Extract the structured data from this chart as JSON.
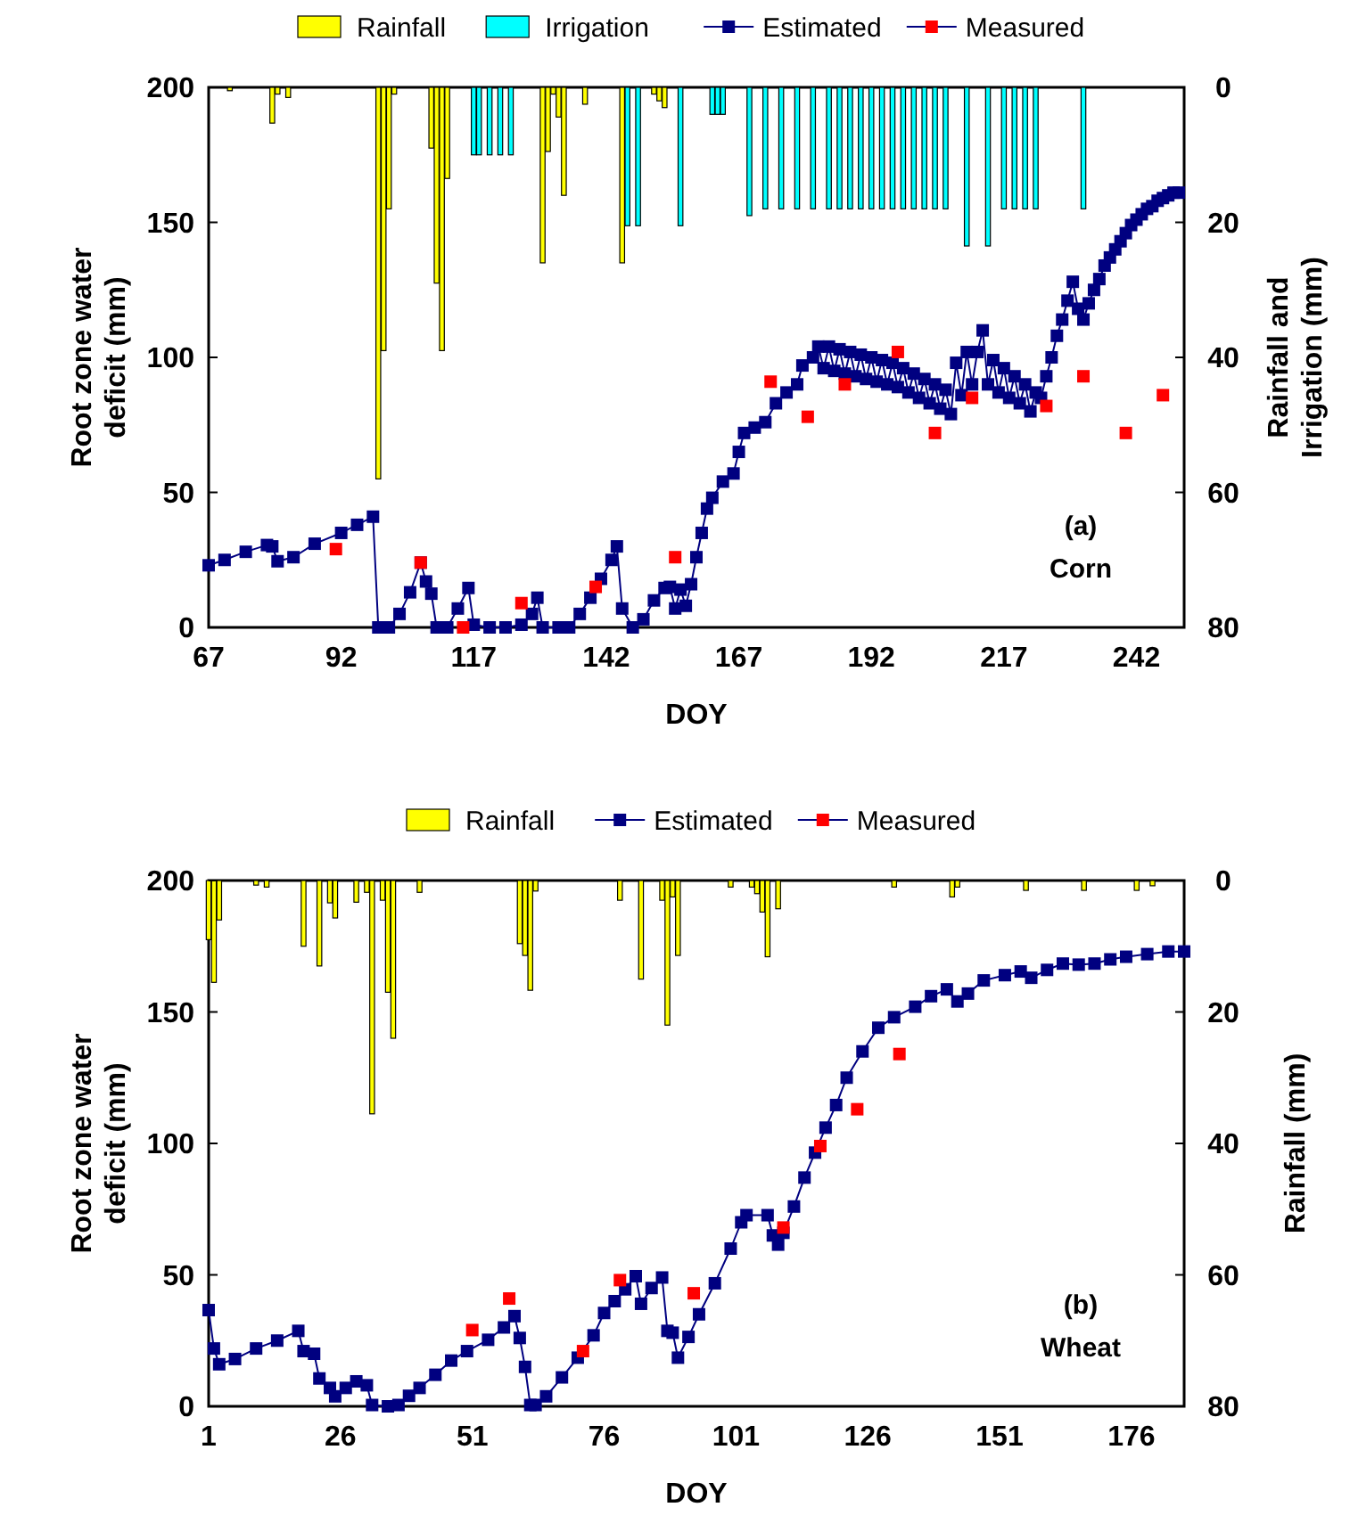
{
  "chart_data": [
    {
      "type": "line",
      "xlabel": "DOY",
      "ylabel": "Root zone water deficit (mm)",
      "y2label": "Rainfall and Irrigation (mm)",
      "legend": "top",
      "annotations": [
        "(a)",
        "Corn"
      ],
      "xlim": [
        67,
        251
      ],
      "xticks": [
        67,
        92,
        117,
        142,
        167,
        192,
        217,
        242
      ],
      "ylim": [
        0,
        200
      ],
      "yticks": [
        0,
        50,
        100,
        150,
        200
      ],
      "y2lim": [
        80,
        0
      ],
      "y2ticks": [
        0,
        20,
        40,
        60,
        80
      ],
      "series": [
        {
          "name": "Rainfall",
          "type": "bar",
          "axis": "y2",
          "color": "#ffff00",
          "x": [
            71,
            79,
            80,
            82,
            99,
            100,
            101,
            102,
            109,
            110,
            111,
            112,
            130,
            131,
            132,
            133,
            134,
            138,
            145,
            151,
            152,
            153
          ],
          "values": [
            0.5,
            5.3,
            1,
            1.5,
            58,
            39,
            18,
            1,
            9,
            29,
            39,
            13.5,
            26,
            9.5,
            1,
            4.4,
            16,
            2.5,
            26,
            1,
            2,
            3
          ]
        },
        {
          "name": "Irrigation",
          "type": "bar",
          "axis": "y2",
          "color": "#00ffff",
          "x": [
            117,
            118,
            120,
            122,
            124,
            146,
            148,
            156,
            162,
            163,
            164,
            169,
            172,
            175,
            178,
            181,
            184,
            186,
            188,
            190,
            192,
            194,
            196,
            198,
            200,
            202,
            204,
            206,
            210,
            214,
            217,
            219,
            221,
            223,
            232
          ],
          "values": [
            10,
            10,
            10,
            10,
            10,
            20.5,
            20.5,
            20.5,
            4,
            4,
            4,
            19,
            18,
            18,
            18,
            18,
            18,
            18,
            18,
            18,
            18,
            18,
            18,
            18,
            18,
            18,
            18,
            18,
            23.5,
            23.5,
            18,
            18,
            18,
            18,
            18
          ]
        },
        {
          "name": "Estimated",
          "marker": "square",
          "color": "#000080",
          "x": [
            67,
            70,
            74,
            78,
            79,
            80,
            83,
            87,
            92,
            95,
            98,
            99,
            101,
            103,
            105,
            107,
            108,
            109,
            110,
            112,
            114,
            116,
            117,
            120,
            123,
            126,
            128,
            129,
            130,
            133,
            135,
            137,
            139,
            141,
            143,
            144,
            145,
            147,
            149,
            151,
            153,
            154,
            155,
            156,
            157,
            158,
            159,
            160,
            161,
            162,
            164,
            166,
            167,
            168,
            170,
            172,
            174,
            176,
            178,
            179,
            181,
            182,
            183,
            184,
            185,
            186,
            187,
            188,
            189,
            190,
            191,
            192,
            193,
            194,
            195,
            196,
            197,
            198,
            199,
            200,
            201,
            202,
            203,
            204,
            205,
            206,
            207,
            208,
            209,
            210,
            211,
            212,
            213,
            214,
            215,
            216,
            217,
            218,
            219,
            220,
            221,
            222,
            223,
            224,
            225,
            226,
            227,
            228,
            229,
            230,
            231,
            232,
            233,
            234,
            235,
            236,
            237,
            238,
            239,
            240,
            241,
            242,
            243,
            244,
            245,
            246,
            247,
            248,
            249,
            250
          ],
          "values": [
            23,
            25,
            28,
            30.5,
            30,
            24.5,
            26,
            31,
            35,
            38,
            41,
            0,
            0,
            5,
            13,
            24,
            17,
            12.5,
            0,
            0,
            7,
            14.6,
            1,
            0,
            0,
            1,
            5,
            11,
            0,
            0,
            0,
            5,
            11,
            18,
            25,
            30,
            7,
            0,
            3,
            10,
            14.6,
            15,
            7,
            14,
            8,
            16,
            26,
            35,
            44,
            48,
            54,
            57,
            65,
            72,
            74,
            76,
            83,
            87,
            90,
            97,
            100,
            104,
            96,
            104,
            95,
            103,
            94,
            102,
            93,
            101,
            92,
            100,
            91,
            99,
            90,
            98,
            89,
            96,
            87,
            94,
            85,
            92,
            83,
            90,
            81,
            88,
            79,
            98,
            86,
            102,
            90,
            102,
            110,
            90,
            99,
            87,
            96,
            85,
            93,
            83,
            90,
            80,
            87,
            85,
            93,
            100,
            108,
            114,
            121,
            128,
            118,
            114,
            120,
            125,
            129,
            134,
            137,
            140,
            143,
            146,
            149,
            151,
            153,
            155,
            156,
            158,
            159,
            160,
            161,
            161
          ]
        },
        {
          "name": "Measured",
          "type": "scatter",
          "marker": "square",
          "color": "#ff0000",
          "x": [
            91,
            107,
            115,
            126,
            140,
            155,
            173,
            180,
            187,
            197,
            204,
            211,
            225,
            232,
            240,
            247
          ],
          "values": [
            29,
            24,
            0,
            9,
            15,
            26,
            91,
            78,
            90,
            102,
            72,
            85,
            82,
            93,
            72,
            86
          ]
        }
      ]
    },
    {
      "type": "line",
      "xlabel": "DOY",
      "ylabel": "Root zone water deficit (mm)",
      "y2label": "Rainfall (mm)",
      "legend": "top",
      "annotations": [
        "(b)",
        "Wheat"
      ],
      "xlim": [
        1,
        186
      ],
      "xticks": [
        1,
        26,
        51,
        76,
        101,
        126,
        151,
        176
      ],
      "ylim": [
        0,
        200
      ],
      "yticks": [
        0,
        50,
        100,
        150,
        200
      ],
      "y2lim": [
        80,
        0
      ],
      "y2ticks": [
        0,
        20,
        40,
        60,
        80
      ],
      "series": [
        {
          "name": "Rainfall",
          "type": "bar",
          "axis": "y2",
          "color": "#ffff00",
          "x": [
            1,
            2,
            3,
            10,
            12,
            19,
            22,
            24,
            25,
            29,
            31,
            32,
            34,
            35,
            36,
            41,
            60,
            61,
            62,
            63,
            79,
            83,
            87,
            88,
            89,
            90,
            100,
            104,
            105,
            106,
            107,
            109,
            131,
            142,
            143,
            156,
            167,
            177,
            180
          ],
          "values": [
            9,
            15.5,
            6,
            0.7,
            1,
            10,
            13,
            3.4,
            5.7,
            3.3,
            1.8,
            35.5,
            3,
            17,
            24,
            1.8,
            9.6,
            11.4,
            16.7,
            1.6,
            3,
            15,
            3,
            22,
            2.5,
            11.4,
            1,
            1,
            2,
            4.8,
            11.6,
            4.3,
            1,
            2.5,
            1,
            1.5,
            1.5,
            1.5,
            0.8
          ]
        },
        {
          "name": "Estimated",
          "marker": "square",
          "color": "#000080",
          "x": [
            1,
            2,
            3,
            6,
            10,
            14,
            18,
            19,
            21,
            22,
            24,
            25,
            27,
            29,
            31,
            32,
            35,
            37,
            39,
            41,
            44,
            47,
            50,
            54,
            57,
            59,
            60,
            61,
            62,
            63,
            65,
            68,
            71,
            74,
            76,
            78,
            80,
            82,
            83,
            85,
            87,
            88,
            89,
            90,
            92,
            94,
            97,
            100,
            102,
            103,
            107,
            108,
            109,
            110,
            112,
            114,
            116,
            118,
            120,
            122,
            125,
            128,
            131,
            135,
            138,
            141,
            143,
            145,
            148,
            152,
            155,
            157,
            160,
            163,
            166,
            169,
            172,
            175,
            179,
            183,
            186
          ],
          "values": [
            36.6,
            22,
            16,
            18,
            22,
            25,
            28.7,
            21,
            20,
            10.6,
            7,
            3.8,
            7,
            9.5,
            8,
            0.5,
            0,
            0.5,
            4,
            7,
            12,
            17.4,
            21,
            25.3,
            30,
            34.3,
            26,
            15,
            0.5,
            0.5,
            3.8,
            11,
            18.5,
            27,
            35.5,
            40,
            44.5,
            49.5,
            39,
            45,
            49,
            28.7,
            28,
            18.5,
            26.4,
            35,
            46.8,
            60,
            70,
            72.7,
            72.7,
            65,
            61.5,
            66,
            76,
            87,
            96.5,
            106,
            114.6,
            125,
            135,
            144,
            148,
            152,
            156,
            158.6,
            154,
            157,
            162,
            164,
            165.4,
            163,
            166,
            168.4,
            168,
            168.4,
            170,
            171,
            172,
            173,
            173
          ]
        },
        {
          "name": "Measured",
          "type": "scatter",
          "marker": "square",
          "color": "#ff0000",
          "x": [
            51,
            58,
            72,
            79,
            93,
            110,
            117,
            124,
            132
          ],
          "values": [
            29,
            41,
            21,
            48,
            43,
            68,
            99,
            113,
            134
          ]
        }
      ]
    }
  ]
}
